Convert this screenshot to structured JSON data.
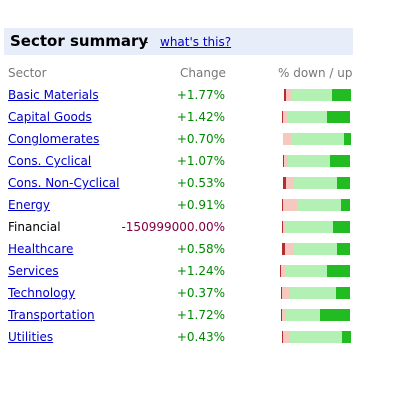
{
  "header": {
    "title": "Sector summary",
    "separator": "-",
    "help_link": "what's this?"
  },
  "columns": {
    "sector": "Sector",
    "change": "Change",
    "down_up": "% down / up"
  },
  "colors": {
    "dark_red": "#b03030",
    "light_red": "#f7c8c0",
    "light_green": "#b3f0b3",
    "dark_green": "#22bb22",
    "link": "#0000cc",
    "positive": "#008800",
    "negative": "#800040"
  },
  "rows": [
    {
      "name": "Basic Materials",
      "change": "+1.77%",
      "link": true,
      "bar": {
        "dark_down": 0.02,
        "light_down": 0.05,
        "light_up": 0.36,
        "dark_up": 0.17
      }
    },
    {
      "name": "Capital Goods",
      "change": "+1.42%",
      "link": true,
      "bar": {
        "dark_down": 0.01,
        "light_down": 0.04,
        "light_up": 0.36,
        "dark_up": 0.21
      }
    },
    {
      "name": "Conglomerates",
      "change": "+0.70%",
      "link": true,
      "bar": {
        "dark_down": 0.0,
        "light_down": 0.07,
        "light_up": 0.48,
        "dark_up": 0.06
      }
    },
    {
      "name": "Cons. Cyclical",
      "change": "+1.07%",
      "link": true,
      "bar": {
        "dark_down": 0.01,
        "light_down": 0.04,
        "light_up": 0.38,
        "dark_up": 0.18
      }
    },
    {
      "name": "Cons. Non-Cyclical",
      "change": "+0.53%",
      "link": true,
      "bar": {
        "dark_down": 0.03,
        "light_down": 0.06,
        "light_up": 0.4,
        "dark_up": 0.12
      }
    },
    {
      "name": "Energy",
      "change": "+0.91%",
      "link": true,
      "bar": {
        "dark_down": 0.01,
        "light_down": 0.13,
        "light_up": 0.4,
        "dark_up": 0.08
      }
    },
    {
      "name": "Financial",
      "change": "-150999000.00%",
      "link": false,
      "bar": {
        "dark_down": 0.01,
        "light_down": 0.02,
        "light_up": 0.44,
        "dark_up": 0.15
      }
    },
    {
      "name": "Healthcare",
      "change": "+0.58%",
      "link": true,
      "bar": {
        "dark_down": 0.03,
        "light_down": 0.07,
        "light_up": 0.4,
        "dark_up": 0.12
      }
    },
    {
      "name": "Services",
      "change": "+1.24%",
      "link": true,
      "bar": {
        "dark_down": 0.01,
        "light_down": 0.04,
        "light_up": 0.38,
        "dark_up": 0.21
      }
    },
    {
      "name": "Technology",
      "change": "+0.37%",
      "link": true,
      "bar": {
        "dark_down": 0.01,
        "light_down": 0.07,
        "light_up": 0.42,
        "dark_up": 0.13
      }
    },
    {
      "name": "Transportation",
      "change": "+1.72%",
      "link": true,
      "bar": {
        "dark_down": 0.01,
        "light_down": 0.03,
        "light_up": 0.32,
        "dark_up": 0.27
      }
    },
    {
      "name": "Utilities",
      "change": "+0.43%",
      "link": true,
      "bar": {
        "dark_down": 0.01,
        "light_down": 0.06,
        "light_up": 0.47,
        "dark_up": 0.08
      }
    }
  ]
}
